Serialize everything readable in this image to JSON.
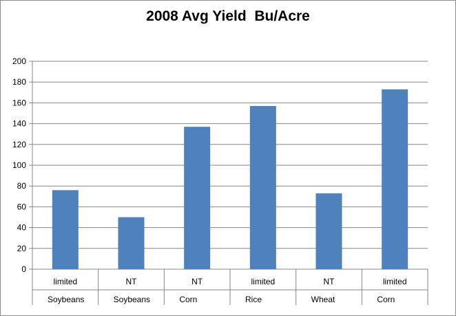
{
  "chart_data": {
    "type": "bar",
    "title": "2008 Avg Yield  Bu/Acre",
    "xlabel": "",
    "ylabel": "",
    "ylim": [
      0,
      200
    ],
    "yticks": [
      0,
      20,
      40,
      60,
      80,
      100,
      120,
      140,
      160,
      180,
      200
    ],
    "grid": true,
    "legend": "none",
    "categories": [
      {
        "method": "limited",
        "crop": "Soybeans"
      },
      {
        "method": "NT",
        "crop": "Soybeans"
      },
      {
        "method": "NT",
        "crop": "Corn"
      },
      {
        "method": "limited",
        "crop": "Rice"
      },
      {
        "method": "NT",
        "crop": "Wheat"
      },
      {
        "method": "limited",
        "crop": "Corn"
      }
    ],
    "values": [
      76,
      50,
      137,
      157,
      73,
      173
    ],
    "bar_color": "#4f81bd"
  }
}
